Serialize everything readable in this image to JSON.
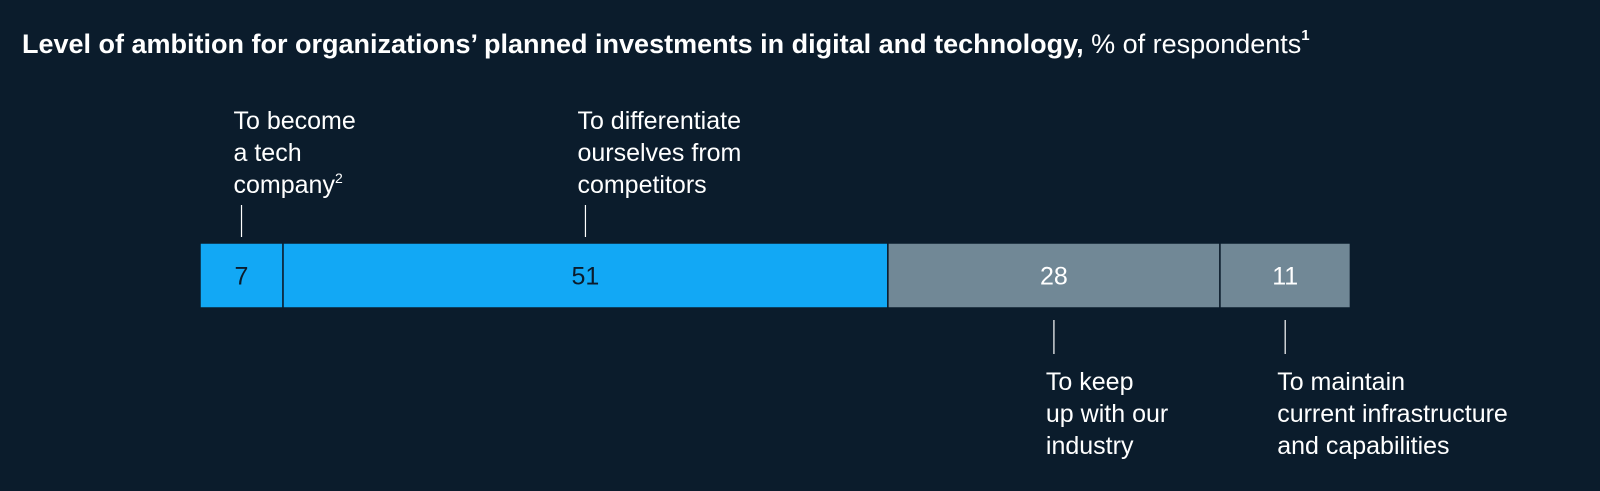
{
  "title": {
    "main": "Level of ambition for organizations’ planned investments in digital and technology,",
    "unit": "% of respondents",
    "footnote_mark": "1"
  },
  "colors": {
    "background": "#0b1c2c",
    "blue": "#12a8f5",
    "gray": "#718896",
    "text": "#ffffff",
    "value_text_dark": "#0b1c2c"
  },
  "chart_data": {
    "type": "bar",
    "orientation": "horizontal-stacked",
    "unit": "% of respondents",
    "categories": [
      "To become a tech company",
      "To differentiate ourselves from competitors",
      "To keep up with our industry",
      "To maintain current infrastructure and capabilities"
    ],
    "values": [
      7,
      51,
      28,
      11
    ],
    "segments": [
      {
        "value": 7,
        "label_lines": [
          "To become",
          "a tech",
          "company"
        ],
        "footnote_mark": "2",
        "label_position": "above",
        "color": "blue"
      },
      {
        "value": 51,
        "label_lines": [
          "To differentiate",
          "ourselves from",
          "competitors"
        ],
        "footnote_mark": "",
        "label_position": "above",
        "color": "blue"
      },
      {
        "value": 28,
        "label_lines": [
          "To keep",
          "up with our",
          "industry"
        ],
        "footnote_mark": "",
        "label_position": "below",
        "color": "gray"
      },
      {
        "value": 11,
        "label_lines": [
          "To maintain",
          "current infrastructure",
          "and capabilities"
        ],
        "footnote_mark": "",
        "label_position": "below",
        "color": "gray"
      }
    ]
  }
}
